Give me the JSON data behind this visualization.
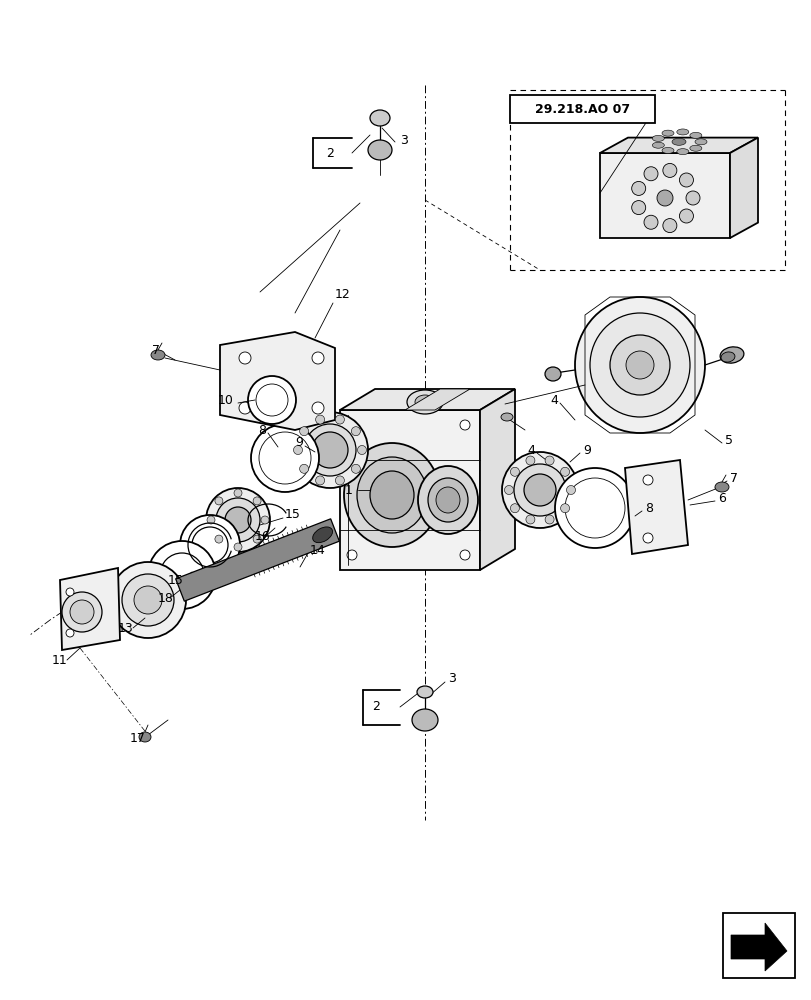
{
  "bg_color": "#ffffff",
  "line_color": "#000000",
  "fig_width": 8.12,
  "fig_height": 10.0,
  "dpi": 100,
  "ref_label": "29.218.AO 07"
}
